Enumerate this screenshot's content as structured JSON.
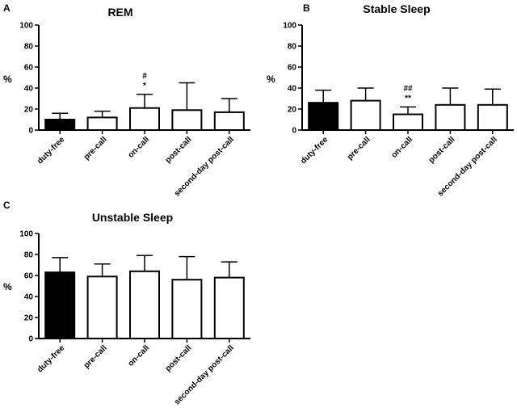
{
  "chart_data": [
    {
      "type": "bar",
      "panel": "A",
      "title": "REM",
      "ylabel": "%",
      "ylim": [
        0,
        100
      ],
      "yticks": [
        0,
        20,
        40,
        60,
        80,
        100
      ],
      "categories": [
        "duty-free",
        "pre-call",
        "on-call",
        "post-call",
        "second-day post-call"
      ],
      "values": [
        10,
        12,
        21,
        19,
        17
      ],
      "errors": [
        6,
        6,
        13,
        26,
        13
      ],
      "fills": [
        "#000000",
        "#ffffff",
        "#ffffff",
        "#ffffff",
        "#ffffff"
      ],
      "annotations": [
        {
          "category": "on-call",
          "lines": [
            "#",
            "*"
          ]
        }
      ]
    },
    {
      "type": "bar",
      "panel": "B",
      "title": "Stable Sleep",
      "ylabel": "%",
      "ylim": [
        0,
        100
      ],
      "yticks": [
        0,
        20,
        40,
        60,
        80,
        100
      ],
      "categories": [
        "duty-free",
        "pre-call",
        "on-call",
        "post-call",
        "second-day post-call"
      ],
      "values": [
        26,
        28,
        15,
        24,
        24
      ],
      "errors": [
        12,
        12,
        7,
        16,
        15
      ],
      "fills": [
        "#000000",
        "#ffffff",
        "#ffffff",
        "#ffffff",
        "#ffffff"
      ],
      "annotations": [
        {
          "category": "on-call",
          "lines": [
            "##",
            "**"
          ]
        }
      ]
    },
    {
      "type": "bar",
      "panel": "C",
      "title": "Unstable Sleep",
      "ylabel": "%",
      "ylim": [
        0,
        100
      ],
      "yticks": [
        0,
        20,
        40,
        60,
        80,
        100
      ],
      "categories": [
        "duty-free",
        "pre-call",
        "on-call",
        "post-call",
        "second-day post-call"
      ],
      "values": [
        63,
        59,
        64,
        56,
        58
      ],
      "errors": [
        14,
        12,
        15,
        22,
        15
      ],
      "fills": [
        "#000000",
        "#ffffff",
        "#ffffff",
        "#ffffff",
        "#ffffff"
      ],
      "annotations": []
    }
  ]
}
